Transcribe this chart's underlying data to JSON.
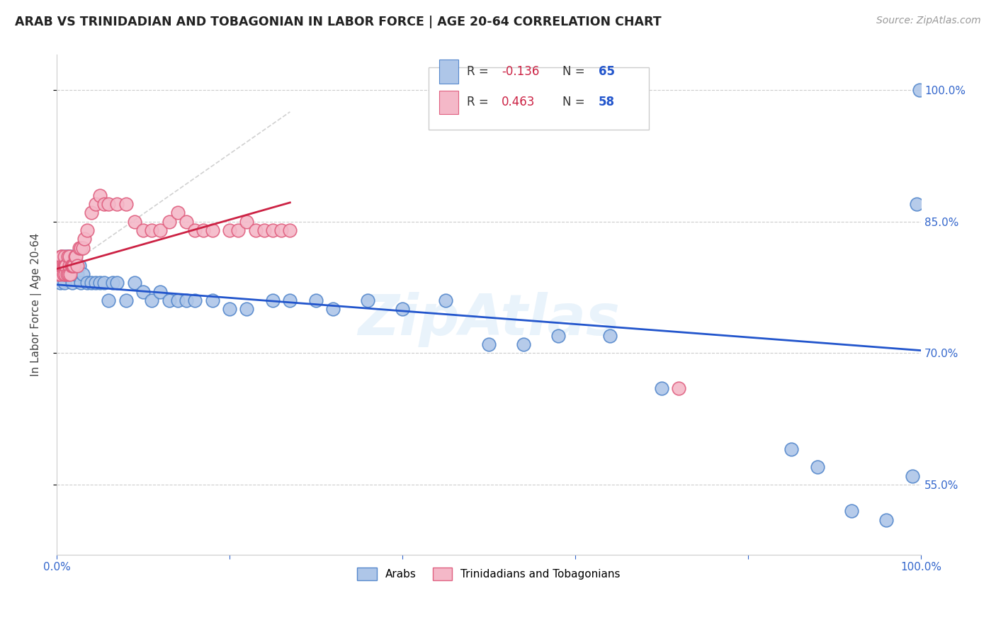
{
  "title": "ARAB VS TRINIDADIAN AND TOBAGONIAN IN LABOR FORCE | AGE 20-64 CORRELATION CHART",
  "source": "Source: ZipAtlas.com",
  "ylabel": "In Labor Force | Age 20-64",
  "arab_color": "#aec6e8",
  "tnt_color": "#f4b8c8",
  "arab_edge_color": "#5588cc",
  "tnt_edge_color": "#e06080",
  "arab_line_color": "#2255cc",
  "tnt_line_color": "#cc2244",
  "arab_R": -0.136,
  "arab_N": 65,
  "tnt_R": 0.463,
  "tnt_N": 58,
  "background_color": "#ffffff",
  "grid_color": "#cccccc",
  "ytick_positions": [
    0.55,
    0.7,
    0.85,
    1.0
  ],
  "ytick_labels": [
    "55.0%",
    "70.0%",
    "85.0%",
    "100.0%"
  ],
  "arab_x": [
    0.002,
    0.003,
    0.004,
    0.005,
    0.006,
    0.007,
    0.008,
    0.009,
    0.01,
    0.01,
    0.011,
    0.012,
    0.013,
    0.014,
    0.015,
    0.016,
    0.017,
    0.018,
    0.019,
    0.02,
    0.021,
    0.022,
    0.024,
    0.026,
    0.028,
    0.03,
    0.035,
    0.04,
    0.045,
    0.05,
    0.055,
    0.06,
    0.065,
    0.07,
    0.08,
    0.09,
    0.1,
    0.11,
    0.12,
    0.13,
    0.14,
    0.15,
    0.16,
    0.18,
    0.2,
    0.22,
    0.25,
    0.27,
    0.3,
    0.32,
    0.36,
    0.4,
    0.45,
    0.5,
    0.54,
    0.58,
    0.64,
    0.7,
    0.85,
    0.88,
    0.92,
    0.96,
    0.99,
    0.995,
    0.998
  ],
  "arab_y": [
    0.79,
    0.8,
    0.78,
    0.79,
    0.81,
    0.8,
    0.79,
    0.78,
    0.81,
    0.79,
    0.8,
    0.8,
    0.81,
    0.81,
    0.79,
    0.8,
    0.81,
    0.78,
    0.8,
    0.8,
    0.79,
    0.79,
    0.79,
    0.8,
    0.78,
    0.79,
    0.78,
    0.78,
    0.78,
    0.78,
    0.78,
    0.76,
    0.78,
    0.78,
    0.76,
    0.78,
    0.77,
    0.76,
    0.77,
    0.76,
    0.76,
    0.76,
    0.76,
    0.76,
    0.75,
    0.75,
    0.76,
    0.76,
    0.76,
    0.75,
    0.76,
    0.75,
    0.76,
    0.71,
    0.71,
    0.72,
    0.72,
    0.66,
    0.59,
    0.57,
    0.52,
    0.51,
    0.56,
    0.87,
    1.0
  ],
  "tnt_x": [
    0.002,
    0.003,
    0.004,
    0.005,
    0.005,
    0.006,
    0.007,
    0.008,
    0.008,
    0.009,
    0.009,
    0.01,
    0.01,
    0.011,
    0.012,
    0.013,
    0.014,
    0.015,
    0.015,
    0.016,
    0.017,
    0.018,
    0.019,
    0.02,
    0.021,
    0.022,
    0.024,
    0.026,
    0.028,
    0.03,
    0.032,
    0.035,
    0.04,
    0.045,
    0.05,
    0.055,
    0.06,
    0.07,
    0.08,
    0.09,
    0.1,
    0.11,
    0.12,
    0.13,
    0.14,
    0.15,
    0.16,
    0.17,
    0.18,
    0.2,
    0.21,
    0.22,
    0.23,
    0.24,
    0.25,
    0.26,
    0.27,
    0.72
  ],
  "tnt_y": [
    0.79,
    0.8,
    0.79,
    0.81,
    0.8,
    0.81,
    0.8,
    0.8,
    0.79,
    0.8,
    0.81,
    0.8,
    0.79,
    0.8,
    0.79,
    0.81,
    0.79,
    0.8,
    0.81,
    0.79,
    0.8,
    0.8,
    0.8,
    0.8,
    0.81,
    0.81,
    0.8,
    0.82,
    0.82,
    0.82,
    0.83,
    0.84,
    0.86,
    0.87,
    0.88,
    0.87,
    0.87,
    0.87,
    0.87,
    0.85,
    0.84,
    0.84,
    0.84,
    0.85,
    0.86,
    0.85,
    0.84,
    0.84,
    0.84,
    0.84,
    0.84,
    0.85,
    0.84,
    0.84,
    0.84,
    0.84,
    0.84,
    0.66
  ]
}
